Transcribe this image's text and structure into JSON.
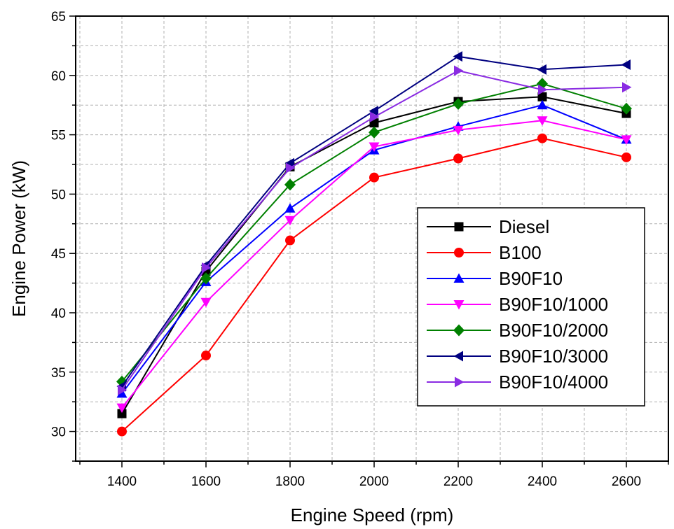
{
  "chart_data": {
    "type": "line",
    "xlabel": "Engine Speed (rpm)",
    "ylabel": "Engine Power (kW)",
    "xlim": [
      1290,
      2700
    ],
    "ylim": [
      27.5,
      65
    ],
    "xticks": [
      1400,
      1600,
      1800,
      2000,
      2200,
      2400,
      2600
    ],
    "yticks": [
      30,
      35,
      40,
      45,
      50,
      55,
      60,
      65
    ],
    "xtick_labels": [
      "1400",
      "1600",
      "1800",
      "2000",
      "2200",
      "2400",
      "2600"
    ],
    "ytick_labels": [
      "30",
      "35",
      "40",
      "45",
      "50",
      "55",
      "60",
      "65"
    ],
    "grid": true,
    "legend_position": "right",
    "x": [
      1400,
      1600,
      1800,
      2000,
      2200,
      2400,
      2600
    ],
    "series": [
      {
        "name": "Diesel",
        "color": "#000000",
        "marker": "square",
        "values": [
          31.5,
          43.5,
          52.3,
          56.0,
          57.8,
          58.2,
          56.8
        ]
      },
      {
        "name": "B100",
        "color": "#ff0000",
        "marker": "circle",
        "values": [
          30.0,
          36.4,
          46.1,
          51.4,
          53.0,
          54.7,
          53.1
        ]
      },
      {
        "name": "B90F10",
        "color": "#0000ff",
        "marker": "triangle-up",
        "values": [
          33.2,
          42.6,
          48.8,
          53.7,
          55.7,
          57.5,
          54.6
        ]
      },
      {
        "name": "B90F10/1000",
        "color": "#ff00ff",
        "marker": "triangle-down",
        "values": [
          32.0,
          40.9,
          47.8,
          54.0,
          55.4,
          56.2,
          54.6
        ]
      },
      {
        "name": "B90F10/2000",
        "color": "#008000",
        "marker": "diamond",
        "values": [
          34.2,
          42.9,
          50.8,
          55.2,
          57.6,
          59.3,
          57.2
        ]
      },
      {
        "name": "B90F10/3000",
        "color": "#000080",
        "marker": "triangle-left",
        "values": [
          33.8,
          44.0,
          52.6,
          57.0,
          61.6,
          60.5,
          60.9
        ]
      },
      {
        "name": "B90F10/4000",
        "color": "#8a2be2",
        "marker": "triangle-right",
        "values": [
          33.5,
          43.8,
          52.2,
          56.5,
          60.4,
          58.8,
          59.0
        ]
      }
    ]
  }
}
